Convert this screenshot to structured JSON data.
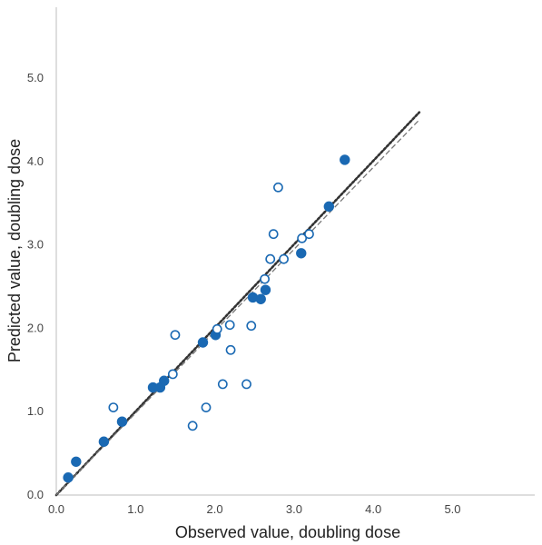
{
  "chart_data": {
    "type": "scatter",
    "title": "",
    "xlabel": "Observed value, doubling dose",
    "ylabel": "Predicted  value, doubling dose",
    "xlim": [
      0,
      5.85
    ],
    "ylim": [
      0,
      5.85
    ],
    "x_ticks": [
      "0.0",
      "1.0",
      "2.0",
      "3.0",
      "4.0",
      "5.0"
    ],
    "y_ticks": [
      "0.0",
      "1.0",
      "2.0",
      "3.0",
      "4.0",
      "5.0"
    ],
    "grid": false,
    "legend": "none",
    "colors": {
      "marker": "#1a69b3",
      "line": "#333333",
      "identity_line": "#777777"
    },
    "series": [
      {
        "marker": "filled-circle",
        "points": [
          [
            0.15,
            0.21
          ],
          [
            0.25,
            0.4
          ],
          [
            0.6,
            0.64
          ],
          [
            0.83,
            0.88
          ],
          [
            1.22,
            1.29
          ],
          [
            1.31,
            1.29
          ],
          [
            1.36,
            1.37
          ],
          [
            1.85,
            1.83
          ],
          [
            2.01,
            1.92
          ],
          [
            2.48,
            2.37
          ],
          [
            2.58,
            2.35
          ],
          [
            2.64,
            2.46
          ],
          [
            3.09,
            2.9
          ],
          [
            3.44,
            3.46
          ],
          [
            3.64,
            4.02
          ]
        ]
      },
      {
        "marker": "open-circle",
        "points": [
          [
            0.72,
            1.05
          ],
          [
            1.5,
            1.92
          ],
          [
            1.47,
            1.45
          ],
          [
            1.72,
            0.83
          ],
          [
            1.89,
            1.05
          ],
          [
            2.03,
            1.99
          ],
          [
            2.1,
            1.33
          ],
          [
            2.19,
            2.04
          ],
          [
            2.2,
            1.74
          ],
          [
            2.4,
            1.33
          ],
          [
            2.46,
            2.03
          ],
          [
            2.63,
            2.59
          ],
          [
            2.7,
            2.83
          ],
          [
            2.74,
            3.13
          ],
          [
            2.8,
            3.69
          ],
          [
            2.87,
            2.83
          ],
          [
            3.1,
            3.08
          ],
          [
            3.19,
            3.13
          ]
        ]
      }
    ],
    "lines": [
      {
        "style": "dotted",
        "from": [
          0.0,
          0.0
        ],
        "to": [
          4.58,
          4.59
        ]
      },
      {
        "style": "dashed",
        "from": [
          0.0,
          0.0
        ],
        "to": [
          4.58,
          4.5
        ]
      }
    ]
  }
}
